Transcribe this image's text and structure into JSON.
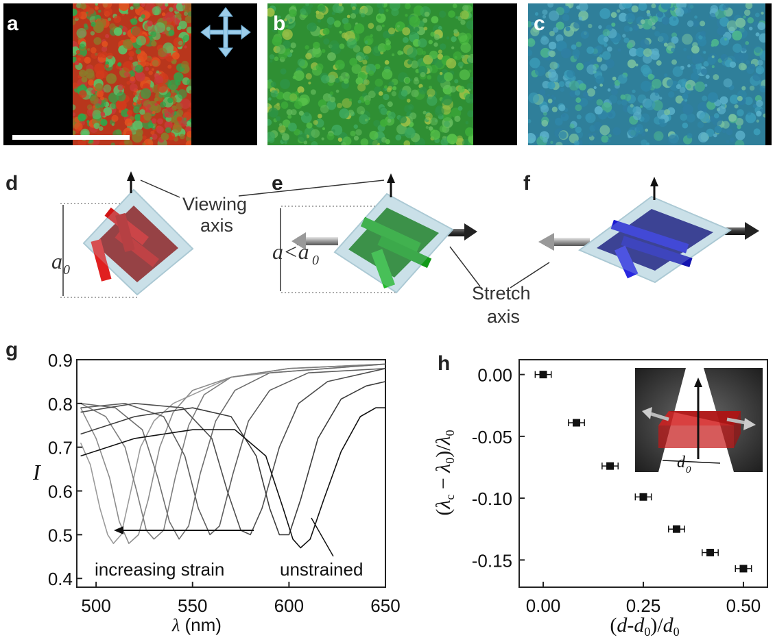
{
  "figure": {
    "panels": {
      "a": "a",
      "b": "b",
      "c": "c",
      "d": "d",
      "e": "e",
      "f": "f",
      "g": "g",
      "h": "h"
    },
    "micrograph_colors": {
      "a": [
        "#d23a1c",
        "#e2501e",
        "#2fa64a",
        "#c93b3b",
        "#5bbf66",
        "#8a7b2a"
      ],
      "b": [
        "#3fae3a",
        "#56c04a",
        "#2e9447",
        "#62b95b",
        "#3da85c",
        "#9cc046"
      ],
      "c": [
        "#3b9cb8",
        "#2f86a8",
        "#4cb48e",
        "#5ab0c9",
        "#2f7fa3",
        "#77c0a0"
      ]
    },
    "schematic": {
      "viewing_axis_line1": "Viewing",
      "viewing_axis_line2": "axis",
      "stretch_axis_line1": "Stretch",
      "stretch_axis_line2": "axis",
      "label_d_var": "a",
      "label_d_sub": "0",
      "label_e_var": "a<a",
      "label_e_sub": "0",
      "colors": {
        "d": "#d11414",
        "e": "#18a51e",
        "f": "#1a1ad2"
      }
    }
  },
  "chart_data": [
    {
      "panel": "g",
      "type": "line",
      "xlabel_var": "λ",
      "xlabel_unit": " (nm)",
      "ylabel": "I",
      "xlim": [
        490,
        650
      ],
      "ylim": [
        0.38,
        0.9
      ],
      "xticks": [
        "500",
        "550",
        "600",
        "650"
      ],
      "xtick_values": [
        500,
        550,
        600,
        650
      ],
      "yticks": [
        "0.4",
        "0.5",
        "0.6",
        "0.7",
        "0.8",
        "0.9"
      ],
      "ytick_values": [
        0.4,
        0.5,
        0.6,
        0.7,
        0.8,
        0.9
      ],
      "annotation_strain": "increasing strain",
      "annotation_unstrained": "unstrained",
      "series": [
        {
          "color": "#9a9a9a",
          "points": [
            [
              492,
              0.71
            ],
            [
              497,
              0.66
            ],
            [
              502,
              0.56
            ],
            [
              506,
              0.5
            ],
            [
              509,
              0.48
            ],
            [
              513,
              0.5
            ],
            [
              518,
              0.6
            ],
            [
              523,
              0.7
            ],
            [
              530,
              0.76
            ],
            [
              540,
              0.8
            ],
            [
              555,
              0.83
            ],
            [
              570,
              0.86
            ],
            [
              590,
              0.87
            ],
            [
              620,
              0.88
            ],
            [
              650,
              0.89
            ]
          ]
        },
        {
          "color": "#8c8c8c",
          "points": [
            [
              492,
              0.79
            ],
            [
              500,
              0.72
            ],
            [
              507,
              0.63
            ],
            [
              512,
              0.53
            ],
            [
              517,
              0.48
            ],
            [
              522,
              0.5
            ],
            [
              527,
              0.58
            ],
            [
              533,
              0.7
            ],
            [
              540,
              0.78
            ],
            [
              550,
              0.83
            ],
            [
              570,
              0.86
            ],
            [
              600,
              0.88
            ],
            [
              650,
              0.89
            ]
          ]
        },
        {
          "color": "#7e7e7e",
          "points": [
            [
              492,
              0.8
            ],
            [
              505,
              0.77
            ],
            [
              515,
              0.7
            ],
            [
              521,
              0.6
            ],
            [
              526,
              0.51
            ],
            [
              530,
              0.49
            ],
            [
              535,
              0.51
            ],
            [
              541,
              0.63
            ],
            [
              548,
              0.75
            ],
            [
              556,
              0.82
            ],
            [
              570,
              0.86
            ],
            [
              600,
              0.88
            ],
            [
              650,
              0.89
            ]
          ]
        },
        {
          "color": "#6e6e6e",
          "points": [
            [
              492,
              0.8
            ],
            [
              510,
              0.79
            ],
            [
              524,
              0.74
            ],
            [
              532,
              0.63
            ],
            [
              538,
              0.53
            ],
            [
              543,
              0.49
            ],
            [
              548,
              0.52
            ],
            [
              554,
              0.64
            ],
            [
              562,
              0.76
            ],
            [
              572,
              0.83
            ],
            [
              590,
              0.87
            ],
            [
              620,
              0.88
            ],
            [
              650,
              0.89
            ]
          ]
        },
        {
          "color": "#5e5e5e",
          "points": [
            [
              492,
              0.79
            ],
            [
              515,
              0.8
            ],
            [
              535,
              0.77
            ],
            [
              546,
              0.68
            ],
            [
              553,
              0.56
            ],
            [
              559,
              0.5
            ],
            [
              564,
              0.52
            ],
            [
              571,
              0.64
            ],
            [
              579,
              0.76
            ],
            [
              590,
              0.83
            ],
            [
              610,
              0.87
            ],
            [
              650,
              0.88
            ]
          ]
        },
        {
          "color": "#4e4e4e",
          "points": [
            [
              492,
              0.78
            ],
            [
              520,
              0.8
            ],
            [
              545,
              0.79
            ],
            [
              560,
              0.72
            ],
            [
              568,
              0.6
            ],
            [
              575,
              0.51
            ],
            [
              580,
              0.5
            ],
            [
              586,
              0.56
            ],
            [
              595,
              0.7
            ],
            [
              605,
              0.8
            ],
            [
              620,
              0.85
            ],
            [
              650,
              0.88
            ]
          ]
        },
        {
          "color": "#3c3c3c",
          "points": [
            [
              492,
              0.73
            ],
            [
              520,
              0.77
            ],
            [
              550,
              0.79
            ],
            [
              570,
              0.77
            ],
            [
              583,
              0.68
            ],
            [
              590,
              0.56
            ],
            [
              595,
              0.5
            ],
            [
              600,
              0.5
            ],
            [
              606,
              0.58
            ],
            [
              615,
              0.72
            ],
            [
              627,
              0.81
            ],
            [
              640,
              0.84
            ],
            [
              650,
              0.85
            ]
          ]
        },
        {
          "color": "#111111",
          "points": [
            [
              492,
              0.68
            ],
            [
              520,
              0.72
            ],
            [
              550,
              0.74
            ],
            [
              572,
              0.74
            ],
            [
              588,
              0.68
            ],
            [
              597,
              0.56
            ],
            [
              602,
              0.49
            ],
            [
              606,
              0.47
            ],
            [
              611,
              0.49
            ],
            [
              618,
              0.58
            ],
            [
              627,
              0.69
            ],
            [
              637,
              0.77
            ],
            [
              645,
              0.79
            ],
            [
              650,
              0.79
            ]
          ]
        }
      ]
    },
    {
      "panel": "h",
      "type": "scatter",
      "xlim": [
        -0.06,
        0.56
      ],
      "ylim": [
        -0.172,
        0.012
      ],
      "xticks": [
        "0.00",
        "0.25",
        "0.50"
      ],
      "xtick_values": [
        0.0,
        0.25,
        0.5
      ],
      "yticks": [
        "0.00",
        "-0.05",
        "-0.10",
        "-0.15"
      ],
      "ytick_values": [
        0.0,
        -0.05,
        -0.1,
        -0.15
      ],
      "points": [
        {
          "x": 0.0,
          "y": 0.0,
          "xerr": 0.02
        },
        {
          "x": 0.083,
          "y": -0.039,
          "xerr": 0.02
        },
        {
          "x": 0.167,
          "y": -0.074,
          "xerr": 0.02
        },
        {
          "x": 0.25,
          "y": -0.099,
          "xerr": 0.02
        },
        {
          "x": 0.333,
          "y": -0.125,
          "xerr": 0.02
        },
        {
          "x": 0.417,
          "y": -0.144,
          "xerr": 0.02
        },
        {
          "x": 0.5,
          "y": -0.157,
          "xerr": 0.02
        }
      ],
      "inset_label_var": "d",
      "inset_label_sub": "0"
    }
  ]
}
